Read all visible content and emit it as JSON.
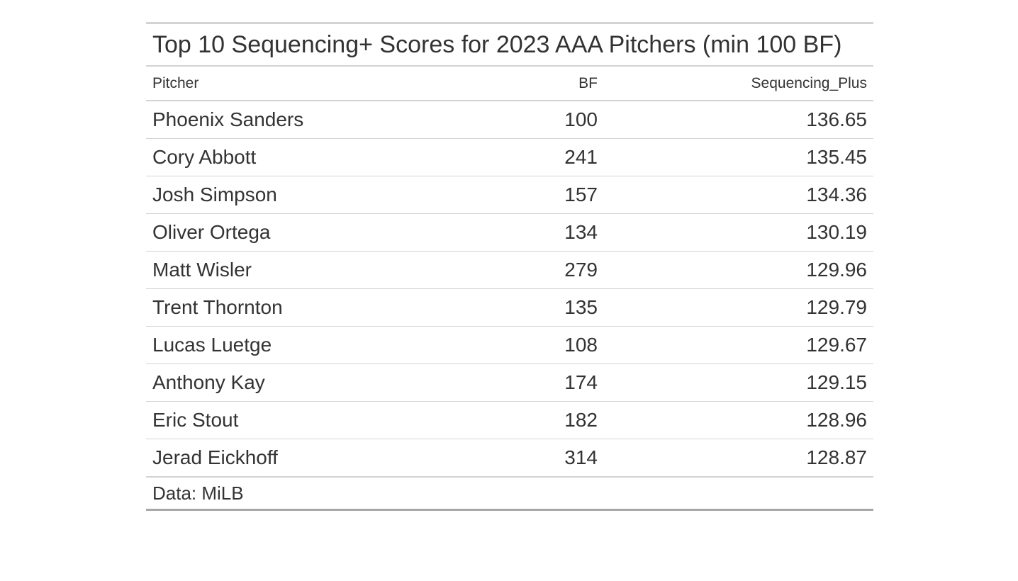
{
  "chart_data": {
    "type": "table",
    "title": "Top 10 Sequencing+ Scores for 2023 AAA Pitchers (min 100 BF)",
    "columns": [
      "Pitcher",
      "BF",
      "Sequencing_Plus"
    ],
    "rows": [
      [
        "Phoenix Sanders",
        "100",
        "136.65"
      ],
      [
        "Cory Abbott",
        "241",
        "135.45"
      ],
      [
        "Josh Simpson",
        "157",
        "134.36"
      ],
      [
        "Oliver Ortega",
        "134",
        "130.19"
      ],
      [
        "Matt Wisler",
        "279",
        "129.96"
      ],
      [
        "Trent Thornton",
        "135",
        "129.79"
      ],
      [
        "Lucas Luetge",
        "108",
        "129.67"
      ],
      [
        "Anthony Kay",
        "174",
        "129.15"
      ],
      [
        "Eric Stout",
        "182",
        "128.96"
      ],
      [
        "Jerad Eickhoff",
        "314",
        "128.87"
      ]
    ],
    "source_note": "Data: MiLB"
  }
}
